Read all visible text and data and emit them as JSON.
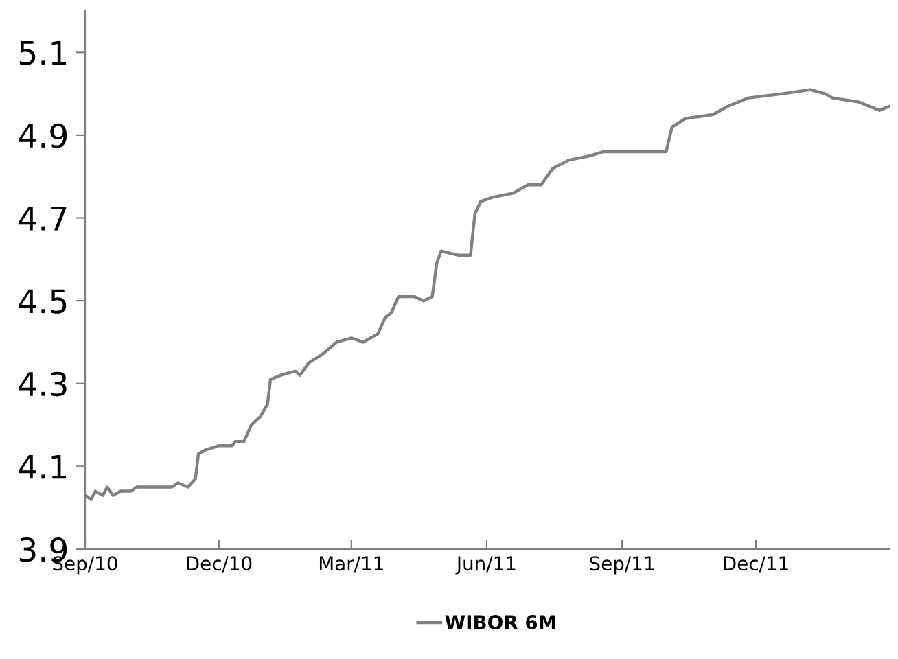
{
  "chart_data": {
    "type": "line",
    "x": [
      "2010-09-01",
      "2010-09-05",
      "2010-09-08",
      "2010-09-13",
      "2010-09-16",
      "2010-09-20",
      "2010-09-25",
      "2010-10-02",
      "2010-10-06",
      "2010-10-30",
      "2010-11-03",
      "2010-11-10",
      "2010-11-15",
      "2010-11-17",
      "2010-11-22",
      "2010-12-01",
      "2010-12-10",
      "2010-12-12",
      "2010-12-18",
      "2010-12-23",
      "2010-12-29",
      "2011-01-03",
      "2011-01-05",
      "2011-01-12",
      "2011-01-22",
      "2011-01-25",
      "2011-01-31",
      "2011-02-09",
      "2011-02-19",
      "2011-03-01",
      "2011-03-09",
      "2011-03-19",
      "2011-03-24",
      "2011-03-28",
      "2011-04-02",
      "2011-04-13",
      "2011-04-19",
      "2011-04-25",
      "2011-04-28",
      "2011-05-01",
      "2011-05-13",
      "2011-05-21",
      "2011-05-24",
      "2011-05-28",
      "2011-06-05",
      "2011-06-19",
      "2011-06-29",
      "2011-07-08",
      "2011-07-16",
      "2011-07-27",
      "2011-08-10",
      "2011-08-19",
      "2011-09-06",
      "2011-10-01",
      "2011-10-05",
      "2011-10-14",
      "2011-11-02",
      "2011-11-12",
      "2011-11-26",
      "2011-12-19",
      "2012-01-07",
      "2012-01-17",
      "2012-01-22",
      "2012-02-09",
      "2012-02-23",
      "2012-03-01"
    ],
    "series": [
      {
        "name": "WIBOR 6M",
        "color": "#808080",
        "values": [
          4.03,
          4.02,
          4.04,
          4.03,
          4.05,
          4.03,
          4.04,
          4.04,
          4.05,
          4.05,
          4.06,
          4.05,
          4.07,
          4.13,
          4.14,
          4.15,
          4.15,
          4.16,
          4.16,
          4.2,
          4.22,
          4.25,
          4.31,
          4.32,
          4.33,
          4.32,
          4.35,
          4.37,
          4.4,
          4.41,
          4.4,
          4.42,
          4.46,
          4.47,
          4.51,
          4.51,
          4.5,
          4.51,
          4.59,
          4.62,
          4.61,
          4.61,
          4.71,
          4.74,
          4.75,
          4.76,
          4.78,
          4.78,
          4.82,
          4.84,
          4.85,
          4.86,
          4.86,
          4.86,
          4.92,
          4.94,
          4.95,
          4.97,
          4.99,
          5.0,
          5.01,
          5.0,
          4.99,
          4.98,
          4.96,
          4.97
        ]
      }
    ],
    "xlim": [
      "2010-09-01",
      "2012-03-01"
    ],
    "xticks": [
      {
        "value": "2010-09-01",
        "label": "Sep/10"
      },
      {
        "value": "2010-12-01",
        "label": "Dec/10"
      },
      {
        "value": "2011-03-01",
        "label": "Mar/11"
      },
      {
        "value": "2011-06-01",
        "label": "Jun/11"
      },
      {
        "value": "2011-09-01",
        "label": "Sep/11"
      },
      {
        "value": "2011-12-01",
        "label": "Dec/11"
      }
    ],
    "ylim": [
      3.9,
      5.2
    ],
    "yticks": [
      3.9,
      4.1,
      4.3,
      4.5,
      4.7,
      4.9,
      5.1
    ],
    "legend": "bottom",
    "grid": false,
    "line_style": "solid",
    "marker": "none"
  }
}
